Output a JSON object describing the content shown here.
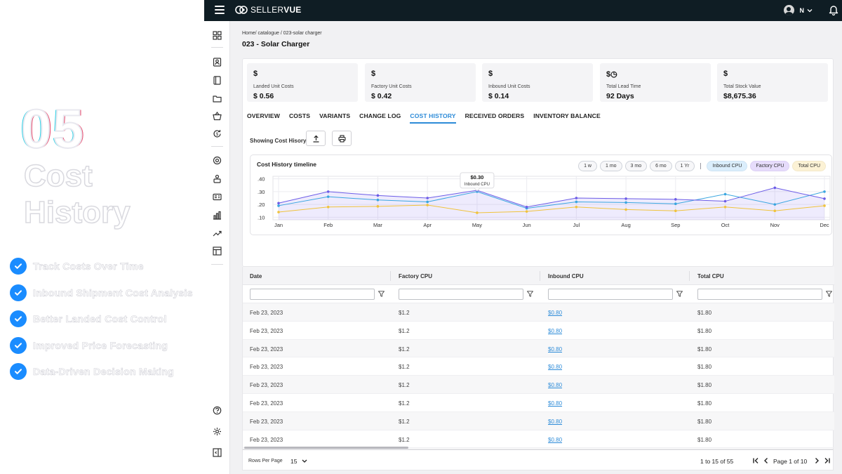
{
  "promo": {
    "number": "05",
    "title_line1": "Cost",
    "title_line2": "History",
    "features": [
      "Track Costs Over Time",
      "Inbound Shipment Cost Analysis",
      "Better Landed Cost Control",
      "Improved Price Forecasting",
      "Data-Driven Decision Making"
    ]
  },
  "app": {
    "logo_bold": "SELLER",
    "logo_thin": "VUE",
    "user_initial": "N",
    "icons": {
      "topbar": [
        "menu-icon",
        "user-avatar-icon",
        "chevron-down-icon",
        "bell-icon"
      ],
      "sidebar": [
        "dashboard-icon",
        "contacts-icon",
        "book-icon",
        "folder-icon",
        "basket-icon",
        "refresh-dollar-icon",
        "support-icon",
        "user-stack-icon",
        "id-card-icon",
        "bar-chart-icon",
        "trend-icon",
        "layout-icon",
        "help-icon",
        "settings-icon",
        "collapse-panel-icon"
      ]
    }
  },
  "breadcrumb": "Home/ catalogue  / 023-solar charger",
  "page_title": "023 - Solar Charger",
  "cards": [
    {
      "icon": "$",
      "label": "Landed Unit Costs",
      "value": "$ 0.56"
    },
    {
      "icon": "$",
      "label": "Factory Unit Costs",
      "value": "$ 0.42"
    },
    {
      "icon": "$",
      "label": "Inbound Unit Costs",
      "value": "$ 0.14"
    },
    {
      "icon": "$◷",
      "label": "Total Lead Time",
      "value": "92 Days"
    },
    {
      "icon": "$",
      "label": "Total Stock Value",
      "value": "$8,675.36"
    }
  ],
  "tabs": [
    "OVERVIEW",
    "COSTS",
    "VARIANTS",
    "CHANGE LOG",
    "COST HISTORY",
    "RECEIVED ORDERS",
    "INVENTORY BALANCE"
  ],
  "active_tab": "COST HISTORY",
  "showing_label": "Showing Cost Hisory",
  "chart": {
    "title": "Cost History timeline",
    "range_chips": [
      "1 w",
      "1 mo",
      "3 mo",
      "6 mo",
      "1 Yr"
    ],
    "series_chips": [
      "Inbound CPU",
      "Factory CPU",
      "Total CPU"
    ],
    "tooltip_value": "$0.30",
    "tooltip_label": "Inbound CPU"
  },
  "chart_data": {
    "type": "line",
    "title": "Cost History timeline",
    "x": [
      "Jan",
      "Feb",
      "Mar",
      "Apr",
      "May",
      "Jun",
      "Jul",
      "Aug",
      "Sep",
      "Oct",
      "Nov",
      "Dec"
    ],
    "yticks": [
      ".40",
      ".30",
      ".20",
      ".10"
    ],
    "ylim": [
      0.08,
      0.42
    ],
    "grid": true,
    "series": [
      {
        "name": "Factory CPU",
        "color": "#6c5ce7",
        "values": [
          0.21,
          0.3,
          0.27,
          0.25,
          0.31,
          0.18,
          0.25,
          0.245,
          0.24,
          0.225,
          0.33,
          0.245
        ]
      },
      {
        "name": "Inbound CPU",
        "color": "#3aa6e0",
        "values": [
          0.19,
          0.26,
          0.235,
          0.22,
          0.3,
          0.17,
          0.22,
          0.215,
          0.205,
          0.28,
          0.2,
          0.3
        ]
      },
      {
        "name": "Total CPU",
        "color": "#f0c33c",
        "values": [
          0.14,
          0.18,
          0.185,
          0.195,
          0.135,
          0.145,
          0.18,
          0.16,
          0.15,
          0.18,
          0.15,
          0.19
        ]
      }
    ],
    "tooltip": {
      "series": "Inbound CPU",
      "x": "May",
      "value": "$0.30"
    }
  },
  "table": {
    "columns": [
      "Date",
      "Factory CPU",
      "Inbound CPU",
      "Total CPU"
    ],
    "rows": [
      [
        "Feb 23, 2023",
        "$1.2",
        "$0.80",
        "$1.80"
      ],
      [
        "Feb 23, 2023",
        "$1.2",
        "$0.80",
        "$1.80"
      ],
      [
        "Feb 23, 2023",
        "$1.2",
        "$0.80",
        "$1.80"
      ],
      [
        "Feb 23, 2023",
        "$1.2",
        "$0.80",
        "$1.80"
      ],
      [
        "Feb 23, 2023",
        "$1.2",
        "$0.80",
        "$1.80"
      ],
      [
        "Feb 23, 2023",
        "$1.2",
        "$0.80",
        "$1.80"
      ],
      [
        "Feb 23, 2023",
        "$1.2",
        "$0.80",
        "$1.80"
      ],
      [
        "Feb 23, 2023",
        "$1.2",
        "$0.80",
        "$1.80"
      ]
    ]
  },
  "pagination": {
    "rows_per_page_label": "Rows Per Page",
    "rows_per_page": "15",
    "range": "1 to 15 of 55",
    "page": "Page 1 of 10"
  }
}
